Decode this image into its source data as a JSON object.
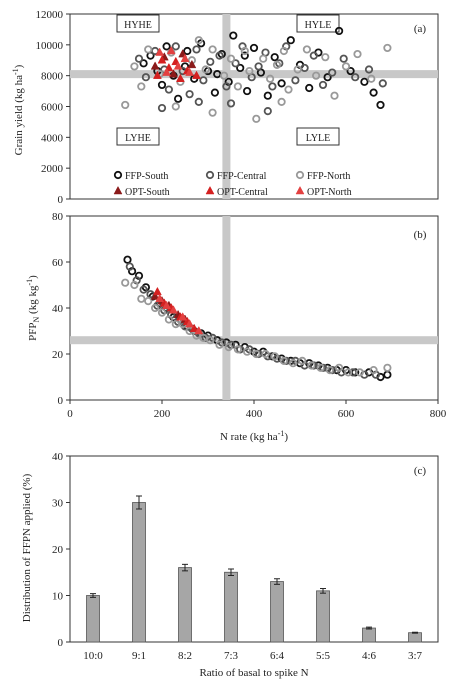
{
  "chart_data": [
    {
      "panel": "(a)",
      "type": "scatter",
      "title": "",
      "xlabel": "",
      "ylabel": "Grain yield (kg ha-1)",
      "xlim": [
        0,
        800
      ],
      "ylim": [
        0,
        12000
      ],
      "yticks": [
        0,
        2000,
        4000,
        6000,
        8000,
        10000,
        12000
      ],
      "threshold_x": 340,
      "threshold_y": 8100,
      "quadrant_labels": {
        "top_left": "HYHE",
        "top_right": "HYLE",
        "bottom_left": "LYHE",
        "bottom_right": "LYLE"
      },
      "legend_position": "bottom",
      "series": [
        {
          "name": "FFP-South",
          "marker": "open-circle",
          "color": "#111111",
          "points": [
            [
              160,
              8800
            ],
            [
              175,
              9300
            ],
            [
              200,
              7400
            ],
            [
              210,
              9900
            ],
            [
              225,
              8000
            ],
            [
              235,
              6500
            ],
            [
              255,
              9600
            ],
            [
              270,
              7800
            ],
            [
              285,
              10100
            ],
            [
              300,
              8300
            ],
            [
              315,
              6900
            ],
            [
              330,
              9400
            ],
            [
              345,
              7600
            ],
            [
              355,
              10600
            ],
            [
              370,
              8500
            ],
            [
              385,
              7000
            ],
            [
              400,
              9800
            ],
            [
              415,
              8200
            ],
            [
              430,
              6700
            ],
            [
              445,
              9200
            ],
            [
              460,
              7500
            ],
            [
              480,
              10300
            ],
            [
              500,
              8700
            ],
            [
              520,
              7200
            ],
            [
              540,
              9500
            ],
            [
              560,
              7900
            ],
            [
              585,
              10900
            ],
            [
              610,
              8300
            ],
            [
              640,
              7600
            ],
            [
              660,
              6900
            ],
            [
              675,
              6100
            ],
            [
              190,
              8300
            ],
            [
              250,
              8600
            ],
            [
              320,
              8100
            ],
            [
              380,
              9300
            ]
          ]
        },
        {
          "name": "FFP-Central",
          "marker": "open-circle",
          "color": "#555555",
          "points": [
            [
              150,
              9100
            ],
            [
              165,
              7900
            ],
            [
              185,
              9600
            ],
            [
              205,
              8400
            ],
            [
              215,
              7100
            ],
            [
              230,
              9900
            ],
            [
              245,
              8300
            ],
            [
              260,
              6800
            ],
            [
              275,
              9700
            ],
            [
              290,
              7700
            ],
            [
              305,
              8900
            ],
            [
              325,
              9300
            ],
            [
              340,
              7300
            ],
            [
              360,
              8800
            ],
            [
              375,
              9900
            ],
            [
              395,
              7900
            ],
            [
              410,
              8600
            ],
            [
              425,
              9500
            ],
            [
              440,
              7300
            ],
            [
              455,
              8800
            ],
            [
              470,
              9900
            ],
            [
              490,
              7700
            ],
            [
              510,
              8500
            ],
            [
              530,
              9300
            ],
            [
              550,
              7400
            ],
            [
              570,
              8200
            ],
            [
              595,
              9100
            ],
            [
              620,
              7900
            ],
            [
              650,
              8400
            ],
            [
              680,
              7500
            ],
            [
              200,
              5900
            ],
            [
              280,
              6300
            ],
            [
              350,
              6200
            ],
            [
              430,
              5700
            ]
          ]
        },
        {
          "name": "FFP-North",
          "marker": "open-circle",
          "color": "#999999",
          "points": [
            [
              120,
              6100
            ],
            [
              140,
              8600
            ],
            [
              155,
              7300
            ],
            [
              170,
              9700
            ],
            [
              195,
              8100
            ],
            [
              220,
              9500
            ],
            [
              240,
              7600
            ],
            [
              265,
              9000
            ],
            [
              280,
              10300
            ],
            [
              295,
              8400
            ],
            [
              310,
              9700
            ],
            [
              335,
              8000
            ],
            [
              350,
              9100
            ],
            [
              365,
              7300
            ],
            [
              380,
              9600
            ],
            [
              390,
              8300
            ],
            [
              405,
              5200
            ],
            [
              420,
              9100
            ],
            [
              435,
              7800
            ],
            [
              450,
              8700
            ],
            [
              465,
              9600
            ],
            [
              475,
              7100
            ],
            [
              495,
              8400
            ],
            [
              515,
              9700
            ],
            [
              535,
              8000
            ],
            [
              555,
              9200
            ],
            [
              575,
              6700
            ],
            [
              600,
              8600
            ],
            [
              625,
              9400
            ],
            [
              655,
              7800
            ],
            [
              690,
              9800
            ],
            [
              230,
              6000
            ],
            [
              310,
              5600
            ],
            [
              460,
              6300
            ]
          ]
        },
        {
          "name": "OPT-South",
          "marker": "filled-triangle",
          "color": "#8b1a1a",
          "points": [
            [
              185,
              8600
            ],
            [
              205,
              9200
            ],
            [
              225,
              8100
            ],
            [
              245,
              9400
            ],
            [
              265,
              8700
            ]
          ]
        },
        {
          "name": "OPT-Central",
          "marker": "filled-triangle",
          "color": "#d42020",
          "points": [
            [
              190,
              8000
            ],
            [
              200,
              9000
            ],
            [
              215,
              8500
            ],
            [
              230,
              8900
            ],
            [
              240,
              7800
            ],
            [
              255,
              8300
            ],
            [
              275,
              8000
            ]
          ]
        },
        {
          "name": "OPT-North",
          "marker": "filled-triangle",
          "color": "#e34040",
          "points": [
            [
              195,
              9500
            ],
            [
              210,
              8200
            ],
            [
              220,
              9600
            ],
            [
              235,
              8600
            ],
            [
              250,
              9100
            ],
            [
              260,
              8200
            ]
          ]
        }
      ]
    },
    {
      "panel": "(b)",
      "type": "scatter",
      "title": "",
      "xlabel": "N rate (kg ha-1)",
      "ylabel": "PFPN (kg kg-1)",
      "xlim": [
        0,
        800
      ],
      "ylim": [
        0,
        80
      ],
      "xticks": [
        0,
        200,
        400,
        600,
        800
      ],
      "yticks": [
        0,
        20,
        40,
        60,
        80
      ],
      "threshold_x": 340,
      "threshold_y": 26,
      "series": [
        {
          "name": "FFP-South",
          "marker": "open-circle",
          "color": "#111111",
          "points": [
            [
              125,
              61
            ],
            [
              135,
              56
            ],
            [
              150,
              54
            ],
            [
              165,
              49
            ],
            [
              180,
              45
            ],
            [
              195,
              42
            ],
            [
              210,
              40
            ],
            [
              225,
              36
            ],
            [
              240,
              35
            ],
            [
              255,
              32
            ],
            [
              270,
              30
            ],
            [
              285,
              29
            ],
            [
              300,
              28
            ],
            [
              320,
              26
            ],
            [
              340,
              25
            ],
            [
              360,
              24
            ],
            [
              380,
              23
            ],
            [
              400,
              21
            ],
            [
              420,
              21
            ],
            [
              440,
              19
            ],
            [
              460,
              18
            ],
            [
              480,
              17
            ],
            [
              500,
              16
            ],
            [
              520,
              16
            ],
            [
              540,
              15
            ],
            [
              560,
              14
            ],
            [
              580,
              13
            ],
            [
              600,
              13
            ],
            [
              620,
              12
            ],
            [
              650,
              12
            ],
            [
              675,
              10
            ],
            [
              690,
              11
            ]
          ]
        },
        {
          "name": "FFP-Central",
          "marker": "open-circle",
          "color": "#555555",
          "points": [
            [
              130,
              58
            ],
            [
              145,
              52
            ],
            [
              160,
              48
            ],
            [
              175,
              46
            ],
            [
              190,
              41
            ],
            [
              205,
              39
            ],
            [
              220,
              37
            ],
            [
              235,
              34
            ],
            [
              250,
              32
            ],
            [
              265,
              31
            ],
            [
              280,
              29
            ],
            [
              295,
              27
            ],
            [
              310,
              27
            ],
            [
              330,
              25
            ],
            [
              350,
              24
            ],
            [
              370,
              22
            ],
            [
              390,
              22
            ],
            [
              410,
              20
            ],
            [
              430,
              19
            ],
            [
              450,
              18
            ],
            [
              470,
              17
            ],
            [
              490,
              17
            ],
            [
              510,
              15
            ],
            [
              530,
              15
            ],
            [
              550,
              14
            ],
            [
              570,
              13
            ],
            [
              590,
              12
            ],
            [
              615,
              12
            ],
            [
              640,
              11
            ],
            [
              665,
              11
            ]
          ]
        },
        {
          "name": "FFP-North",
          "marker": "open-circle",
          "color": "#999999",
          "points": [
            [
              120,
              51
            ],
            [
              140,
              50
            ],
            [
              155,
              44
            ],
            [
              170,
              43
            ],
            [
              185,
              40
            ],
            [
              200,
              38
            ],
            [
              215,
              35
            ],
            [
              230,
              33
            ],
            [
              245,
              33
            ],
            [
              260,
              30
            ],
            [
              275,
              28
            ],
            [
              290,
              27
            ],
            [
              305,
              26
            ],
            [
              325,
              24
            ],
            [
              345,
              23
            ],
            [
              365,
              22
            ],
            [
              385,
              21
            ],
            [
              405,
              20
            ],
            [
              425,
              20
            ],
            [
              445,
              19
            ],
            [
              465,
              17
            ],
            [
              485,
              16
            ],
            [
              505,
              17
            ],
            [
              525,
              15
            ],
            [
              545,
              14
            ],
            [
              565,
              13
            ],
            [
              585,
              14
            ],
            [
              605,
              12
            ],
            [
              630,
              12
            ],
            [
              660,
              13
            ],
            [
              690,
              14
            ]
          ]
        },
        {
          "name": "OPT-South",
          "marker": "filled-triangle",
          "color": "#8b1a1a",
          "points": [
            [
              185,
              45
            ],
            [
              200,
              43
            ],
            [
              215,
              41
            ],
            [
              235,
              37
            ],
            [
              250,
              35
            ]
          ]
        },
        {
          "name": "OPT-Central",
          "marker": "filled-triangle",
          "color": "#d42020",
          "points": [
            [
              190,
              47
            ],
            [
              205,
              42
            ],
            [
              220,
              40
            ],
            [
              240,
              36
            ],
            [
              255,
              34
            ],
            [
              270,
              31
            ]
          ]
        },
        {
          "name": "OPT-North",
          "marker": "filled-triangle",
          "color": "#e34040",
          "points": [
            [
              195,
              44
            ],
            [
              210,
              41
            ],
            [
              225,
              39
            ],
            [
              245,
              36
            ],
            [
              260,
              33
            ],
            [
              280,
              30
            ]
          ]
        }
      ]
    },
    {
      "panel": "(c)",
      "type": "bar",
      "title": "",
      "xlabel": "Ratio of basal to spike N",
      "ylabel": "Distribution of FFPN applied (%)",
      "ylim": [
        0,
        40
      ],
      "yticks": [
        0,
        10,
        20,
        30,
        40
      ],
      "categories": [
        "10:0",
        "9:1",
        "8:2",
        "7:3",
        "6:4",
        "5:5",
        "4:6",
        "3:7"
      ],
      "values": [
        10,
        30,
        16,
        15,
        13,
        11,
        3,
        2
      ],
      "errors": [
        0.4,
        1.4,
        0.7,
        0.7,
        0.6,
        0.5,
        0.2,
        0.1
      ],
      "bar_color": "#a6a6a6"
    }
  ],
  "axis_text": {
    "a_ylabel_main": "Grain yield (kg ha",
    "a_ylabel_sup": "-1",
    "a_ylabel_end": ")",
    "b_ylabel_main": "PFP",
    "b_ylabel_sub": "N",
    "b_ylabel_mid": " (kg kg",
    "b_ylabel_sup": "-1",
    "b_ylabel_end": ")",
    "b_xlabel_main": "N rate (kg ha",
    "b_xlabel_sup": "-1",
    "b_xlabel_end": ")"
  },
  "colors": {
    "threshold_band": "#c8c8c8",
    "axis": "#333333"
  }
}
